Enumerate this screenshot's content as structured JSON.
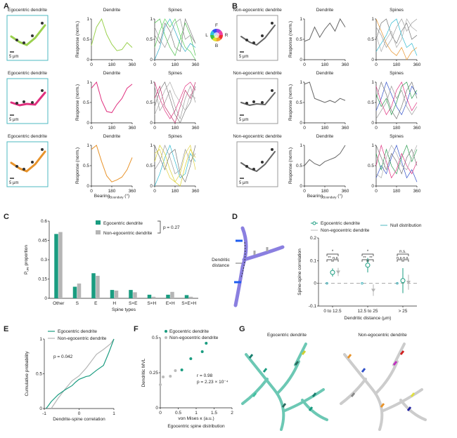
{
  "panels": {
    "A": "A",
    "B": "B",
    "C": "C",
    "D": "D",
    "E": "E",
    "F": "F",
    "G": "G"
  },
  "common": {
    "col_dendrite": "Dendrite",
    "col_spines": "Spines",
    "ylabel": "Response (norm.)",
    "xlabel": "Bearing",
    "xlabel_sub": "Boundary",
    "xlabel_unit": " (°)",
    "scale_bar": "5 μm",
    "xticks": [
      "0",
      "180",
      "360"
    ],
    "yticks": [
      "0",
      "0.5",
      "1"
    ]
  },
  "color_wheel": {
    "F": "F",
    "B": "B",
    "L": "L",
    "R": "R"
  },
  "panel_A": [
    {
      "title": "Egocentric dendrite",
      "color": "#9bd14f",
      "dendrite": [
        0.35,
        0.8,
        1.0,
        0.62,
        0.38,
        0.22,
        0.25,
        0.42,
        0.3
      ],
      "spines": [
        {
          "color": "#4cbf4c",
          "values": [
            0.9,
            1,
            0.6,
            0.3,
            0.1,
            0.5,
            0.9,
            0.6,
            0.1
          ]
        },
        {
          "color": "#2aa8c8",
          "values": [
            0,
            0.3,
            0.8,
            1,
            0.7,
            0.4,
            0.2,
            0.4,
            0.3
          ]
        },
        {
          "color": "#777",
          "values": [
            0.6,
            0.4,
            0.9,
            0.7,
            0.3,
            0.2,
            1,
            0.7,
            0.4
          ]
        },
        {
          "color": "#5bd15b",
          "values": [
            0.3,
            0.7,
            1,
            0.8,
            1,
            0.6,
            0.3,
            0.2,
            0
          ]
        },
        {
          "color": "#999",
          "values": [
            0.8,
            0.5,
            0.3,
            0.6,
            0.9,
            1,
            0.5,
            0.6,
            0.4
          ]
        }
      ]
    },
    {
      "title": "Egocentric dendrite",
      "color": "#e0307f",
      "dendrite": [
        0.85,
        1.0,
        0.55,
        0.28,
        0.25,
        0.45,
        0.6,
        0.85,
        0.95
      ],
      "spines": [
        {
          "color": "#e0307f",
          "values": [
            1,
            0.6,
            0.3,
            0.1,
            0.3,
            0.6,
            0.9,
            1,
            0.8
          ]
        },
        {
          "color": "#777",
          "values": [
            0.4,
            0.8,
            1,
            0.6,
            0.2,
            0,
            0.3,
            0.5,
            0.9
          ]
        },
        {
          "color": "#999",
          "values": [
            0.9,
            0.3,
            0.5,
            0.8,
            0.4,
            0.1,
            0.6,
            0.9,
            0.5
          ]
        },
        {
          "color": "#c0306a",
          "values": [
            0.6,
            0.9,
            0.4,
            0.2,
            0,
            0.4,
            0.8,
            0.6,
            1
          ]
        },
        {
          "color": "#aaa",
          "values": [
            0.2,
            0.5,
            0.8,
            1,
            0.7,
            0.5,
            0.3,
            0.7,
            0.6
          ]
        }
      ]
    },
    {
      "title": "Egocentric dendrite",
      "color": "#e8932a",
      "dendrite": [
        0.9,
        1.0,
        0.6,
        0.25,
        0.1,
        0.15,
        0.22,
        0.4,
        0.7
      ],
      "spines": [
        {
          "color": "#2ab8d0",
          "values": [
            0,
            0.3,
            0.7,
            1,
            0.6,
            0.2,
            0.3,
            0.8,
            0.6
          ]
        },
        {
          "color": "#d8d02a",
          "values": [
            0.6,
            1,
            0.8,
            0.4,
            0.1,
            0,
            0.5,
            0.9,
            0.7
          ]
        },
        {
          "color": "#777",
          "values": [
            1,
            0.7,
            0.4,
            0.8,
            0.9,
            0.3,
            0.1,
            0.5,
            1
          ]
        },
        {
          "color": "#999",
          "values": [
            0.4,
            0.6,
            1,
            0.7,
            0.3,
            0.4,
            0.9,
            0.6,
            0.8
          ]
        },
        {
          "color": "#e0d040",
          "values": [
            0.8,
            0.9,
            0.5,
            0.2,
            0.1,
            0.3,
            0.8,
            1,
            0.4
          ]
        }
      ]
    }
  ],
  "panel_B": [
    {
      "title": "Non-egocentric dendrite",
      "color": "#666",
      "dendrite": [
        0.45,
        0.5,
        0.8,
        0.55,
        0.75,
        0.9,
        0.7,
        1.0,
        0.8
      ],
      "spines": [
        {
          "color": "#e8932a",
          "values": [
            1,
            0.7,
            0.4,
            0.2,
            0.1,
            0.3,
            0,
            0.2,
            0.3
          ]
        },
        {
          "color": "#777",
          "values": [
            0.5,
            0.9,
            1,
            0.6,
            0.4,
            0.7,
            0.9,
            0.5,
            0.6
          ]
        },
        {
          "color": "#2ab8d0",
          "values": [
            0.2,
            0.4,
            0.6,
            0.9,
            1,
            0.6,
            0.3,
            0.4,
            0.1
          ]
        },
        {
          "color": "#999",
          "values": [
            0.8,
            0.6,
            0.3,
            0.5,
            0.8,
            1,
            0.7,
            0.9,
            1
          ]
        },
        {
          "color": "#aaa",
          "values": [
            0.6,
            0.2,
            0.5,
            0.7,
            0.3,
            0.5,
            1,
            0.8,
            0.7
          ]
        }
      ]
    },
    {
      "title": "Non-egocentric dendrite",
      "color": "#666",
      "dendrite": [
        0.95,
        1.0,
        0.6,
        0.55,
        0.5,
        0.55,
        0.5,
        0.6,
        0.55
      ],
      "spines": [
        {
          "color": "#3050c8",
          "values": [
            0.3,
            0.6,
            1,
            0.7,
            0.4,
            0.2,
            0.5,
            0.9,
            0.7
          ]
        },
        {
          "color": "#e0307f",
          "values": [
            0.9,
            0.5,
            0.2,
            0.4,
            0.8,
            1,
            0.6,
            0.3,
            0.5
          ]
        },
        {
          "color": "#777",
          "values": [
            0.6,
            1,
            0.7,
            0.3,
            0.1,
            0.4,
            0.8,
            1,
            0.6
          ]
        },
        {
          "color": "#999",
          "values": [
            0.1,
            0.3,
            0.5,
            0.9,
            0.6,
            0.8,
            0.4,
            0.2,
            0.4
          ]
        },
        {
          "color": "#2a9c50",
          "values": [
            0.7,
            0.4,
            0.6,
            0.2,
            0.5,
            0.9,
            1,
            0.6,
            0.8
          ]
        }
      ]
    },
    {
      "title": "Non-egocentric dendrite",
      "color": "#666",
      "dendrite": [
        0.5,
        0.65,
        0.55,
        0.5,
        0.6,
        0.65,
        0.7,
        0.8,
        1.0
      ],
      "spines": [
        {
          "color": "#3050c8",
          "values": [
            0.2,
            0.5,
            0.3,
            0.7,
            1,
            0.6,
            0.2,
            0.4,
            0.1
          ]
        },
        {
          "color": "#2a9c50",
          "values": [
            0.8,
            0.4,
            0.9,
            0.5,
            0.3,
            0.7,
            1,
            0.6,
            0.9
          ]
        },
        {
          "color": "#e0307f",
          "values": [
            0.5,
            1,
            0.6,
            0.2,
            0.4,
            0.8,
            0.5,
            0.3,
            0.6
          ]
        },
        {
          "color": "#777",
          "values": [
            1,
            0.7,
            0.4,
            0.8,
            0.6,
            0.3,
            0.7,
            0.9,
            0.5
          ]
        },
        {
          "color": "#aaa",
          "values": [
            0.3,
            0.2,
            0.7,
            1,
            0.8,
            0.5,
            0.4,
            0.7,
            1
          ]
        }
      ]
    }
  ],
  "chart_data": [
    {
      "id": "C",
      "type": "bar",
      "xlabel": "Spine types",
      "ylabel": "P",
      "ylabel_sub": "ure",
      "ylabel_rest": " proportion",
      "categories": [
        "Other",
        "S",
        "E",
        "H",
        "S×E",
        "S×H",
        "E×H",
        "S×E×H"
      ],
      "series": [
        {
          "name": "Egocentric dendrite",
          "color": "#1a9c80",
          "values": [
            0.5,
            0.09,
            0.195,
            0.065,
            0.065,
            0.028,
            0.028,
            0.025
          ]
        },
        {
          "name": "Non-egocentric dendrite",
          "color": "#b5b5b5",
          "values": [
            0.515,
            0.115,
            0.175,
            0.06,
            0.047,
            0.012,
            0.05,
            0.012
          ]
        }
      ],
      "ylim": [
        0,
        0.6
      ],
      "yticks": [
        "0",
        "0.15",
        "0.3",
        "0.45",
        "0.6"
      ],
      "annotation": "p = 0.27",
      "legend": "top-right"
    },
    {
      "id": "D",
      "type": "scatter",
      "xlabel": "Dendritic distance (μm)",
      "ylabel": "Spine-spine correlation",
      "categories": [
        "0 to 12.5",
        "12.5 to 25",
        "> 25"
      ],
      "series": [
        {
          "name": "Egocentric dendrite",
          "color": "#1a9c80",
          "values": [
            0.048,
            0.08,
            0.012
          ],
          "errors": [
            0.018,
            0.032,
            0.055
          ]
        },
        {
          "name": "Non-egocentric dendrite",
          "color": "#b5b5b5",
          "values": [
            0.05,
            -0.03,
            0.005
          ],
          "errors": [
            0.018,
            0.025,
            0.033
          ]
        },
        {
          "name": "Null distribution",
          "color": "#4cb8c0",
          "values": [
            0,
            0,
            0
          ]
        }
      ],
      "ylim": [
        -0.1,
        0.2
      ],
      "yticks": [
        "-0.1",
        "0",
        "0.1",
        "0.2"
      ],
      "significance": [
        {
          "top": "*",
          "left": "**",
          "right": "n.s."
        },
        {
          "top": "*",
          "left": "**",
          "right": "**"
        },
        {
          "top": "n.s.",
          "left": "n.s.",
          "right": "n.s."
        }
      ],
      "diagram_label": [
        "Dendritic",
        "distance"
      ]
    },
    {
      "id": "E",
      "type": "line",
      "xlabel": "Dendrite-spine correlation",
      "ylabel": "Cumulative probability",
      "series": [
        {
          "name": "Egocentric dendrite",
          "color": "#1a9c80",
          "x": [
            -0.95,
            -0.9,
            -0.8,
            -0.6,
            -0.4,
            -0.2,
            -0.1,
            0,
            0.2,
            0.3,
            0.5,
            0.7,
            0.85,
            1
          ],
          "y": [
            0,
            0.03,
            0.1,
            0.2,
            0.27,
            0.33,
            0.38,
            0.42,
            0.46,
            0.47,
            0.55,
            0.62,
            0.8,
            1
          ]
        },
        {
          "name": "Non-egocentric dendrite",
          "color": "#b5b5b5",
          "x": [
            -0.8,
            -0.6,
            -0.4,
            -0.2,
            0,
            0.2,
            0.35,
            0.5,
            0.7,
            0.9,
            1
          ],
          "y": [
            0,
            0.15,
            0.28,
            0.4,
            0.47,
            0.58,
            0.68,
            0.78,
            0.85,
            0.93,
            1
          ]
        }
      ],
      "xlim": [
        -1,
        1
      ],
      "ylim": [
        0,
        1
      ],
      "xticks": [
        "-1",
        "0",
        "1"
      ],
      "yticks": [
        "0",
        "0.5",
        "1"
      ],
      "annotation": "p = 0.042"
    },
    {
      "id": "F",
      "type": "scatter",
      "xlabel": "von Mises κ (a.u.)",
      "xlabel2": "Egocentric spine distribution",
      "ylabel": "Dendritic MVL",
      "series": [
        {
          "name": "Egocentric dendrite",
          "color": "#1a9c80",
          "x": [
            0.6,
            0.85,
            1.17,
            1.28
          ],
          "y": [
            0.27,
            0.35,
            0.4,
            0.46
          ]
        },
        {
          "name": "Non-egocentric dendrite",
          "color": "#bbbbbb",
          "x": [
            0,
            0.08,
            0.28,
            0.42
          ],
          "y": [
            0.165,
            0.22,
            0.225,
            0.265
          ]
        }
      ],
      "xlim": [
        0,
        2
      ],
      "ylim": [
        0,
        0.5
      ],
      "xticks": [
        "0",
        "0.5",
        "1",
        "1.5",
        "2"
      ],
      "yticks": [
        "0",
        "0.25",
        "0.5"
      ],
      "annotation_r": "r = 0.98",
      "annotation_p": "p = 2.23 × 10⁻⁴"
    }
  ],
  "panel_G": {
    "left_title": "Egocentric dendrite",
    "right_title": "Non-egocentric dendrite"
  }
}
